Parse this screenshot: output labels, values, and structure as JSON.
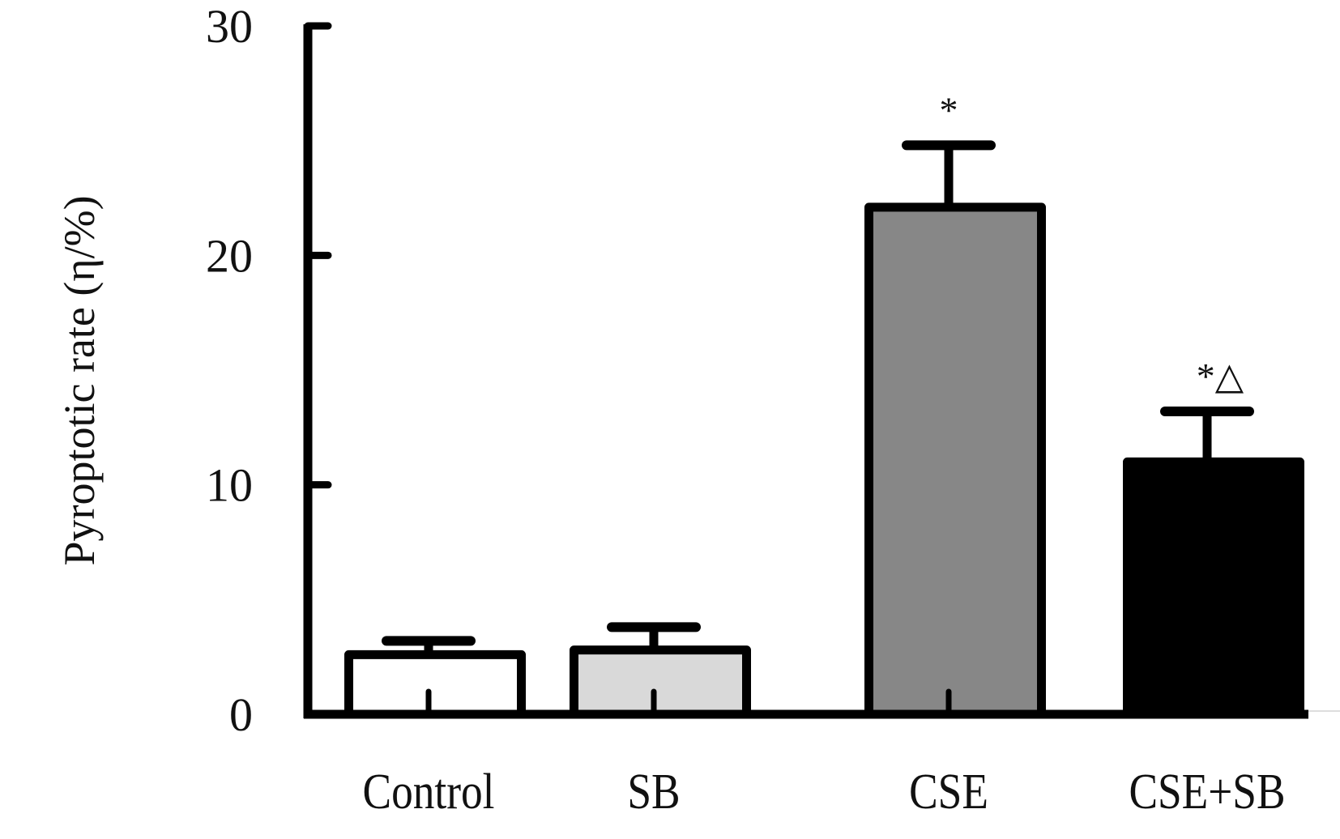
{
  "chart_data": {
    "type": "bar",
    "title": "",
    "xlabel": "",
    "ylabel": "Pyroptotic rate (η/%)",
    "categories": [
      "Control",
      "SB",
      "CSE",
      "CSE+SB"
    ],
    "values": [
      2.6,
      2.8,
      22.1,
      11.0
    ],
    "error_upper": [
      3.2,
      3.8,
      24.8,
      13.2
    ],
    "annotations": [
      "",
      "",
      "*",
      "*△"
    ],
    "bar_colors": [
      "#ffffff",
      "#d9d9d9",
      "#878787",
      "#000000"
    ],
    "ylim": [
      0,
      30
    ],
    "yticks": [
      0,
      10,
      20,
      30
    ],
    "ytick_labels": [
      "0",
      "10",
      "20",
      "30"
    ],
    "grid": false,
    "legend": "none"
  }
}
